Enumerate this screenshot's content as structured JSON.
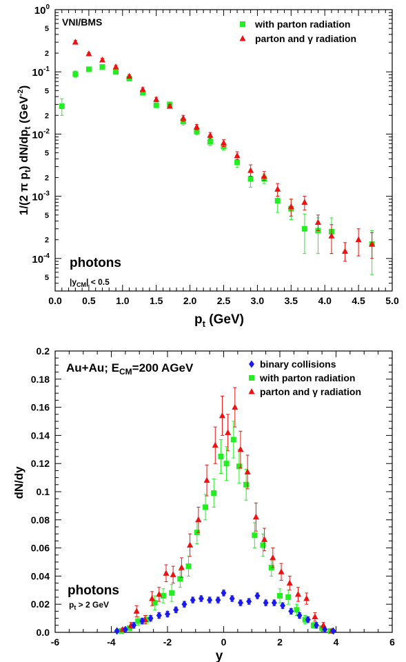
{
  "chart_data": [
    {
      "type": "scatter",
      "yscale": "log",
      "xlim": [
        0,
        5
      ],
      "ylim": [
        3e-05,
        1
      ],
      "xlabel": "p_t (GeV)",
      "ylabel": "1/(2 π p_t) dN/dp_t (GeV^-2)",
      "xticks": [
        "0.0",
        "0.5",
        "1.0",
        "1.5",
        "2.0",
        "2.5",
        "3.0",
        "3.5",
        "4.0",
        "4.5",
        "5.0"
      ],
      "yticks_major": [
        "10^-4",
        "10^-3",
        "10^-2",
        "10^-1",
        "10^0"
      ],
      "corner_label": "VNI/BMS",
      "annotation": "photons",
      "annotation_sub": "|y_CM| < 0.5",
      "legend_position": "top-right",
      "series": [
        {
          "name": "with parton radiation",
          "marker": "square",
          "color": "#22ee22",
          "points": [
            {
              "x": 0.1,
              "y": 0.028,
              "lo": 0.02,
              "hi": 0.037
            },
            {
              "x": 0.3,
              "y": 0.092,
              "lo": 0.082,
              "hi": 0.103
            },
            {
              "x": 0.5,
              "y": 0.11,
              "lo": 0.103,
              "hi": 0.118
            },
            {
              "x": 0.7,
              "y": 0.12,
              "lo": 0.113,
              "hi": 0.128
            },
            {
              "x": 0.9,
              "y": 0.1,
              "lo": 0.094,
              "hi": 0.106
            },
            {
              "x": 1.1,
              "y": 0.078,
              "lo": 0.073,
              "hi": 0.083
            },
            {
              "x": 1.3,
              "y": 0.046,
              "lo": 0.043,
              "hi": 0.049
            },
            {
              "x": 1.5,
              "y": 0.029,
              "lo": 0.027,
              "hi": 0.031
            },
            {
              "x": 1.7,
              "y": 0.03,
              "lo": 0.028,
              "hi": 0.032
            },
            {
              "x": 1.9,
              "y": 0.016,
              "lo": 0.014,
              "hi": 0.018
            },
            {
              "x": 2.1,
              "y": 0.011,
              "lo": 0.0098,
              "hi": 0.0122
            },
            {
              "x": 2.3,
              "y": 0.0075,
              "lo": 0.0065,
              "hi": 0.0086
            },
            {
              "x": 2.5,
              "y": 0.0063,
              "lo": 0.0055,
              "hi": 0.0071
            },
            {
              "x": 2.7,
              "y": 0.0035,
              "lo": 0.0029,
              "hi": 0.0042
            },
            {
              "x": 2.9,
              "y": 0.0019,
              "lo": 0.0014,
              "hi": 0.0025
            },
            {
              "x": 3.1,
              "y": 0.0019,
              "lo": 0.0016,
              "hi": 0.0023
            },
            {
              "x": 3.3,
              "y": 0.00085,
              "lo": 0.00055,
              "hi": 0.0012
            },
            {
              "x": 3.5,
              "y": 0.00063,
              "lo": 0.00042,
              "hi": 0.0009
            },
            {
              "x": 3.7,
              "y": 0.0003,
              "lo": 0.00012,
              "hi": 0.00052
            },
            {
              "x": 3.9,
              "y": 0.00028,
              "lo": 0.00012,
              "hi": 0.00045
            },
            {
              "x": 4.1,
              "y": 0.00027,
              "lo": 0.00012,
              "hi": 0.00045
            },
            {
              "x": 4.7,
              "y": 0.00017,
              "lo": 5.5e-05,
              "hi": 0.00028
            }
          ]
        },
        {
          "name": "parton and γ radiation",
          "marker": "triangle",
          "color": "#ee1111",
          "points": [
            {
              "x": 0.3,
              "y": 0.3,
              "lo": 0.28,
              "hi": 0.32
            },
            {
              "x": 0.5,
              "y": 0.195,
              "lo": 0.185,
              "hi": 0.205
            },
            {
              "x": 0.7,
              "y": 0.155,
              "lo": 0.145,
              "hi": 0.165
            },
            {
              "x": 0.9,
              "y": 0.12,
              "lo": 0.113,
              "hi": 0.127
            },
            {
              "x": 1.1,
              "y": 0.085,
              "lo": 0.08,
              "hi": 0.09
            },
            {
              "x": 1.3,
              "y": 0.052,
              "lo": 0.048,
              "hi": 0.056
            },
            {
              "x": 1.5,
              "y": 0.036,
              "lo": 0.033,
              "hi": 0.039
            },
            {
              "x": 1.7,
              "y": 0.028,
              "lo": 0.026,
              "hi": 0.03
            },
            {
              "x": 1.9,
              "y": 0.018,
              "lo": 0.016,
              "hi": 0.02
            },
            {
              "x": 2.1,
              "y": 0.013,
              "lo": 0.0117,
              "hi": 0.0143
            },
            {
              "x": 2.3,
              "y": 0.0095,
              "lo": 0.0084,
              "hi": 0.0106
            },
            {
              "x": 2.5,
              "y": 0.0072,
              "lo": 0.0063,
              "hi": 0.0081
            },
            {
              "x": 2.7,
              "y": 0.0045,
              "lo": 0.0039,
              "hi": 0.0052
            },
            {
              "x": 2.9,
              "y": 0.0026,
              "lo": 0.0021,
              "hi": 0.0032
            },
            {
              "x": 3.1,
              "y": 0.0021,
              "lo": 0.0018,
              "hi": 0.0025
            },
            {
              "x": 3.3,
              "y": 0.0013,
              "lo": 0.001,
              "hi": 0.0016
            },
            {
              "x": 3.5,
              "y": 0.00068,
              "lo": 0.00048,
              "hi": 0.0009
            },
            {
              "x": 3.7,
              "y": 0.0008,
              "lo": 0.0006,
              "hi": 0.001
            },
            {
              "x": 3.9,
              "y": 0.00038,
              "lo": 0.00028,
              "hi": 0.0005
            },
            {
              "x": 4.1,
              "y": 0.00023,
              "lo": 0.00012,
              "hi": 0.00035
            },
            {
              "x": 4.3,
              "y": 0.00013,
              "lo": 9e-05,
              "hi": 0.00018
            },
            {
              "x": 4.5,
              "y": 0.0002,
              "lo": 0.00011,
              "hi": 0.0003
            },
            {
              "x": 4.7,
              "y": 0.00017,
              "lo": 0.0001,
              "hi": 0.00026
            }
          ]
        }
      ]
    },
    {
      "type": "scatter",
      "xlim": [
        -6,
        6
      ],
      "ylim": [
        0,
        0.2
      ],
      "xlabel": "y",
      "ylabel": "dN/dy",
      "xticks": [
        "-6",
        "-4",
        "-2",
        "0",
        "2",
        "4",
        "6"
      ],
      "yticks": [
        "0.0",
        "0.02",
        "0.04",
        "0.06",
        "0.08",
        "0.1",
        "0.12",
        "0.14",
        "0.16",
        "0.18",
        "0.2"
      ],
      "title_inset": "Au+Au; E_CM=200 AGeV",
      "annotation": "photons",
      "annotation_sub": "p_t > 2 GeV",
      "legend_position": "top-right",
      "series": [
        {
          "name": "binary collisions",
          "marker": "diamond",
          "color": "#1a1aee",
          "points": [
            {
              "x": -3.8,
              "y": 0.001,
              "e": 0.001
            },
            {
              "x": -3.5,
              "y": 0.002,
              "e": 0.001
            },
            {
              "x": -3.2,
              "y": 0.005,
              "e": 0.002
            },
            {
              "x": -2.9,
              "y": 0.008,
              "e": 0.002
            },
            {
              "x": -2.6,
              "y": 0.01,
              "e": 0.002
            },
            {
              "x": -2.3,
              "y": 0.012,
              "e": 0.002
            },
            {
              "x": -2.0,
              "y": 0.013,
              "e": 0.002
            },
            {
              "x": -1.7,
              "y": 0.016,
              "e": 0.002
            },
            {
              "x": -1.4,
              "y": 0.02,
              "e": 0.002
            },
            {
              "x": -1.1,
              "y": 0.023,
              "e": 0.002
            },
            {
              "x": -0.8,
              "y": 0.024,
              "e": 0.002
            },
            {
              "x": -0.5,
              "y": 0.023,
              "e": 0.002
            },
            {
              "x": -0.2,
              "y": 0.023,
              "e": 0.002
            },
            {
              "x": 0.0,
              "y": 0.028,
              "e": 0.002
            },
            {
              "x": 0.3,
              "y": 0.024,
              "e": 0.002
            },
            {
              "x": 0.6,
              "y": 0.021,
              "e": 0.002
            },
            {
              "x": 0.9,
              "y": 0.022,
              "e": 0.002
            },
            {
              "x": 1.2,
              "y": 0.026,
              "e": 0.002
            },
            {
              "x": 1.5,
              "y": 0.021,
              "e": 0.002
            },
            {
              "x": 1.8,
              "y": 0.021,
              "e": 0.002
            },
            {
              "x": 2.1,
              "y": 0.019,
              "e": 0.002
            },
            {
              "x": 2.4,
              "y": 0.015,
              "e": 0.002
            },
            {
              "x": 2.7,
              "y": 0.012,
              "e": 0.002
            },
            {
              "x": 3.0,
              "y": 0.009,
              "e": 0.002
            },
            {
              "x": 3.3,
              "y": 0.005,
              "e": 0.002
            },
            {
              "x": 3.6,
              "y": 0.002,
              "e": 0.001
            },
            {
              "x": 3.9,
              "y": 0.001,
              "e": 0.001
            }
          ]
        },
        {
          "name": "with parton radiation",
          "marker": "square",
          "color": "#22ee22",
          "points": [
            {
              "x": -3.65,
              "y": 0.001,
              "e": 0.001
            },
            {
              "x": -3.35,
              "y": 0.003,
              "e": 0.001
            },
            {
              "x": -3.05,
              "y": 0.008,
              "e": 0.003
            },
            {
              "x": -2.75,
              "y": 0.009,
              "e": 0.003
            },
            {
              "x": -2.45,
              "y": 0.021,
              "e": 0.005
            },
            {
              "x": -2.15,
              "y": 0.026,
              "e": 0.005
            },
            {
              "x": -1.85,
              "y": 0.028,
              "e": 0.006
            },
            {
              "x": -1.55,
              "y": 0.038,
              "e": 0.006
            },
            {
              "x": -1.25,
              "y": 0.047,
              "e": 0.007
            },
            {
              "x": -0.95,
              "y": 0.071,
              "e": 0.008
            },
            {
              "x": -0.65,
              "y": 0.089,
              "e": 0.009
            },
            {
              "x": -0.35,
              "y": 0.099,
              "e": 0.01
            },
            {
              "x": -0.1,
              "y": 0.125,
              "e": 0.012
            },
            {
              "x": 0.1,
              "y": 0.12,
              "e": 0.012
            },
            {
              "x": 0.35,
              "y": 0.137,
              "e": 0.013
            },
            {
              "x": 0.55,
              "y": 0.118,
              "e": 0.012
            },
            {
              "x": 0.8,
              "y": 0.105,
              "e": 0.011
            },
            {
              "x": 1.1,
              "y": 0.069,
              "e": 0.009
            },
            {
              "x": 1.4,
              "y": 0.062,
              "e": 0.008
            },
            {
              "x": 1.7,
              "y": 0.046,
              "e": 0.006
            },
            {
              "x": 2.0,
              "y": 0.026,
              "e": 0.005
            },
            {
              "x": 2.3,
              "y": 0.025,
              "e": 0.005
            },
            {
              "x": 2.6,
              "y": 0.016,
              "e": 0.004
            },
            {
              "x": 2.9,
              "y": 0.009,
              "e": 0.003
            },
            {
              "x": 3.2,
              "y": 0.005,
              "e": 0.002
            },
            {
              "x": 3.5,
              "y": 0.003,
              "e": 0.001
            },
            {
              "x": 3.8,
              "y": 0.001,
              "e": 0.001
            }
          ]
        },
        {
          "name": "parton and γ radiation",
          "marker": "triangle",
          "color": "#ee1111",
          "points": [
            {
              "x": -3.6,
              "y": 0.002,
              "e": 0.001
            },
            {
              "x": -3.3,
              "y": 0.005,
              "e": 0.002
            },
            {
              "x": -3.1,
              "y": 0.015,
              "e": 0.004
            },
            {
              "x": -2.8,
              "y": 0.009,
              "e": 0.003
            },
            {
              "x": -2.55,
              "y": 0.024,
              "e": 0.005
            },
            {
              "x": -2.3,
              "y": 0.027,
              "e": 0.005
            },
            {
              "x": -2.05,
              "y": 0.042,
              "e": 0.006
            },
            {
              "x": -1.8,
              "y": 0.041,
              "e": 0.006
            },
            {
              "x": -1.5,
              "y": 0.046,
              "e": 0.007
            },
            {
              "x": -1.2,
              "y": 0.062,
              "e": 0.008
            },
            {
              "x": -0.9,
              "y": 0.08,
              "e": 0.009
            },
            {
              "x": -0.6,
              "y": 0.108,
              "e": 0.011
            },
            {
              "x": -0.3,
              "y": 0.133,
              "e": 0.013
            },
            {
              "x": -0.05,
              "y": 0.154,
              "e": 0.014
            },
            {
              "x": 0.15,
              "y": 0.142,
              "e": 0.013
            },
            {
              "x": 0.4,
              "y": 0.16,
              "e": 0.014
            },
            {
              "x": 0.6,
              "y": 0.13,
              "e": 0.013
            },
            {
              "x": 0.85,
              "y": 0.114,
              "e": 0.012
            },
            {
              "x": 1.15,
              "y": 0.082,
              "e": 0.01
            },
            {
              "x": 1.45,
              "y": 0.066,
              "e": 0.008
            },
            {
              "x": 1.75,
              "y": 0.053,
              "e": 0.007
            },
            {
              "x": 2.05,
              "y": 0.043,
              "e": 0.006
            },
            {
              "x": 2.35,
              "y": 0.035,
              "e": 0.005
            },
            {
              "x": 2.65,
              "y": 0.027,
              "e": 0.005
            },
            {
              "x": 2.95,
              "y": 0.024,
              "e": 0.004
            },
            {
              "x": 3.25,
              "y": 0.011,
              "e": 0.003
            },
            {
              "x": 3.55,
              "y": 0.005,
              "e": 0.002
            },
            {
              "x": 3.85,
              "y": 0.001,
              "e": 0.001
            }
          ]
        }
      ]
    }
  ]
}
